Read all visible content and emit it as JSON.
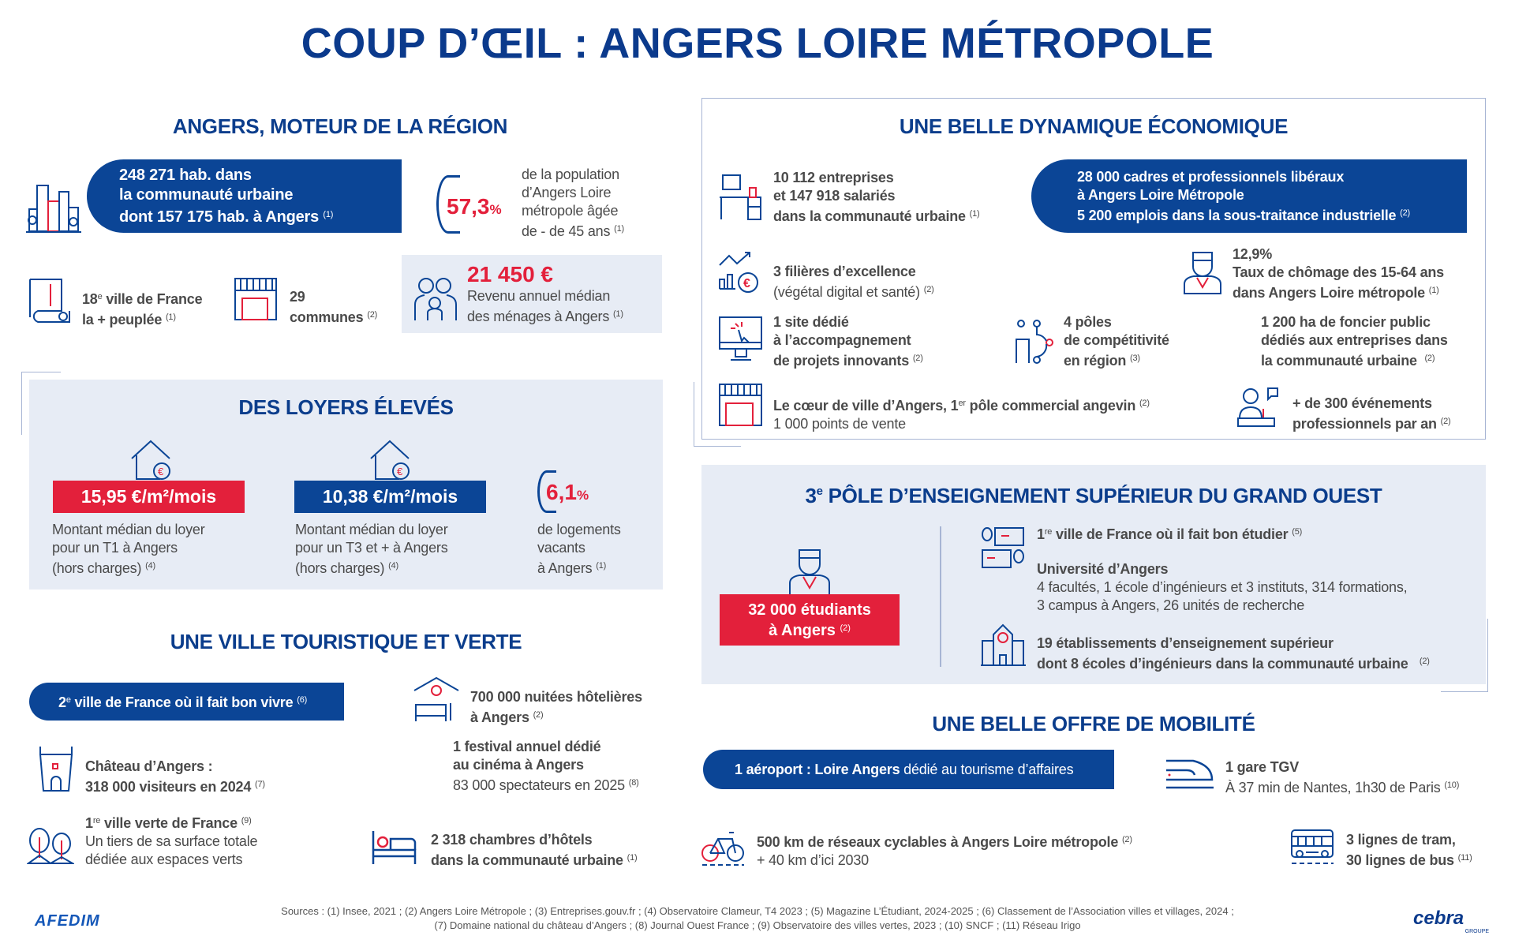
{
  "title": "COUP D’ŒIL : ANGERS LOIRE MÉTROPOLE",
  "region": {
    "heading": "ANGERS, MOTEUR DE LA RÉGION",
    "population": {
      "line1": "248 271 hab. dans",
      "line2": "la communauté urbaine",
      "line3": "dont 157 175 hab. à Angers",
      "note": "(1)"
    },
    "age": {
      "value": "57,3",
      "unit": "%",
      "line1": "de la population",
      "line2": "d’Angers Loire",
      "line3": "métropole âgée",
      "line4": "de -  de 45 ans",
      "note": "(1)"
    },
    "rank": {
      "num": "18",
      "sup": "e",
      "line1": " ville de France",
      "line2": "la + peuplée",
      "note": "(1)"
    },
    "communes": {
      "line1": "29",
      "line2": "communes",
      "note": "(2)"
    },
    "income": {
      "value": "21 450 €",
      "line1": "Revenu annuel médian",
      "line2": "des ménages à Angers",
      "note": "(1)"
    }
  },
  "rents": {
    "heading": "DES LOYERS ÉLEVÉS",
    "t1": {
      "price": "15,95 €/m²/mois",
      "line1": "Montant médian du loyer",
      "line2": "pour un T1 à Angers",
      "line3": "(hors charges)",
      "note": "(4)"
    },
    "t3": {
      "price": "10,38 €/m²/mois",
      "line1": "Montant médian du loyer",
      "line2": "pour un T3 et + à Angers",
      "line3": "(hors charges)",
      "note": "(4)"
    },
    "vacant": {
      "value": "6,1",
      "unit": "%",
      "line1": "de logements",
      "line2": "vacants",
      "line3": "à Angers",
      "note": "(1)"
    }
  },
  "tourism": {
    "heading": "UNE VILLE TOURISTIQUE ET VERTE",
    "pill": {
      "num": "2",
      "sup": "e",
      "text": " ville de France où il fait bon vivre",
      "note": "(6)"
    },
    "nights": {
      "line1": "700 000 nuitées hôtelières",
      "line2": "à Angers",
      "note": "(2)"
    },
    "castle": {
      "line1": "Château d’Angers :",
      "line2": "318 000 visiteurs en 2024",
      "note": "(7)"
    },
    "festival": {
      "line1": "1 festival annuel dédié",
      "line2": "au cinéma à Angers",
      "line3": "83 000 spectateurs en 2025",
      "note": "(8)"
    },
    "green": {
      "num": "1",
      "sup": "re",
      "line1": " ville verte de France",
      "note": "(9)",
      "line2": "Un tiers de sa surface totale",
      "line3": "dédiée aux espaces verts"
    },
    "rooms": {
      "line1": "2 318 chambres d’hôtels",
      "line2": "dans la communauté urbaine",
      "note": "(1)"
    }
  },
  "economy": {
    "heading": "UNE BELLE DYNAMIQUE ÉCONOMIQUE",
    "companies": {
      "line1": "10 112 entreprises",
      "line2": "et 147 918 salariés",
      "line3": "dans la communauté urbaine",
      "note": "(1)"
    },
    "pill": {
      "line1": "28 000 cadres et professionnels libéraux",
      "line2": "à Angers Loire Métropole",
      "line3": "5 200 emplois dans la sous-traitance industrielle",
      "note": "(2)"
    },
    "sectors": {
      "line1": "3 filières d’excellence",
      "line2": "(végétal digital et santé)",
      "note": "(2)"
    },
    "unemployment": {
      "line1": "12,9%",
      "line2": "Taux de chômage des 15-64 ans",
      "line3": "dans Angers Loire métropole",
      "note": "(1)"
    },
    "site": {
      "line1": "1 site dédié",
      "line2": "à l’accompagnement",
      "line3": "de projets innovants",
      "note": "(2)"
    },
    "poles": {
      "line1": "4 pôles",
      "line2": "de compétitivité",
      "line3": "en région",
      "note": "(3)"
    },
    "land": {
      "line1": "1 200 ha de foncier public",
      "line2": "dédiés aux entreprises dans",
      "line3": "la communauté urbaine",
      "note": "(2)"
    },
    "commerce": {
      "line1a": "Le cœur de ville d’Angers, 1",
      "sup": "er",
      "line1b": " pôle commercial angevin",
      "note": "(2)",
      "line2": "1 000 points de vente"
    },
    "events": {
      "line1": "+ de 300 événements",
      "line2": "professionnels par an",
      "note": "(2)"
    }
  },
  "education": {
    "heading_num": "3",
    "heading_sup": "e",
    "heading": " PÔLE D’ENSEIGNEMENT SUPÉRIEUR DU GRAND OUEST",
    "students": {
      "line1": "32 000 étudiants",
      "line2": "à Angers",
      "note": "(2)"
    },
    "study": {
      "num": "1",
      "sup": "re",
      "text": " ville de France où il fait bon étudier",
      "note": "(5)"
    },
    "university": {
      "line1": "Université d’Angers",
      "line2": "4 facultés, 1 école d’ingénieurs et 3 instituts, 314 formations,",
      "line3": "3 campus à Angers, 26 unités de recherche"
    },
    "institutions": {
      "line1": "19 établissements d’enseignement supérieur",
      "line2": "dont 8 écoles d’ingénieurs dans la communauté urbaine",
      "note": "(2)"
    }
  },
  "mobility": {
    "heading": "UNE BELLE OFFRE DE MOBILITÉ",
    "airport": {
      "bold": "1 aéroport : Loire Angers",
      "rest": " dédié au tourisme d’affaires"
    },
    "train": {
      "line1": "1 gare TGV",
      "line2": "À 37 min de Nantes, 1h30 de Paris",
      "note": "(10)"
    },
    "bike": {
      "line1": "500 km de réseaux cyclables à Angers Loire métropole",
      "note": "(2)",
      "line2": "+ 40 km d’ici 2030"
    },
    "transit": {
      "line1": "3 lignes de tram,",
      "line2": "30 lignes de bus",
      "note": "(11)"
    }
  },
  "footer": {
    "sources1": "Sources : (1) Insee, 2021 ; (2) Angers Loire Métropole ; (3) Entreprises.gouv.fr ; (4) Observatoire Clameur, T4 2023 ; (5) Magazine L’Étudiant, 2024-2025 ; (6) Classement de l’Association villes et villages, 2024 ;",
    "sources2": "(7) Domaine national du château d’Angers ; (8) Journal Ouest France ; (9) Observatoire des villes vertes, 2023 ; (10) SNCF ; (11) Réseau Irigo",
    "logo_left": "AFEDIM",
    "logo_right": "cebra",
    "logo_right_sub": "GROUPE"
  },
  "colors": {
    "blue": "#0b4596",
    "navy": "#0b3a8c",
    "red": "#e3203b",
    "light": "#e7ecf5"
  }
}
